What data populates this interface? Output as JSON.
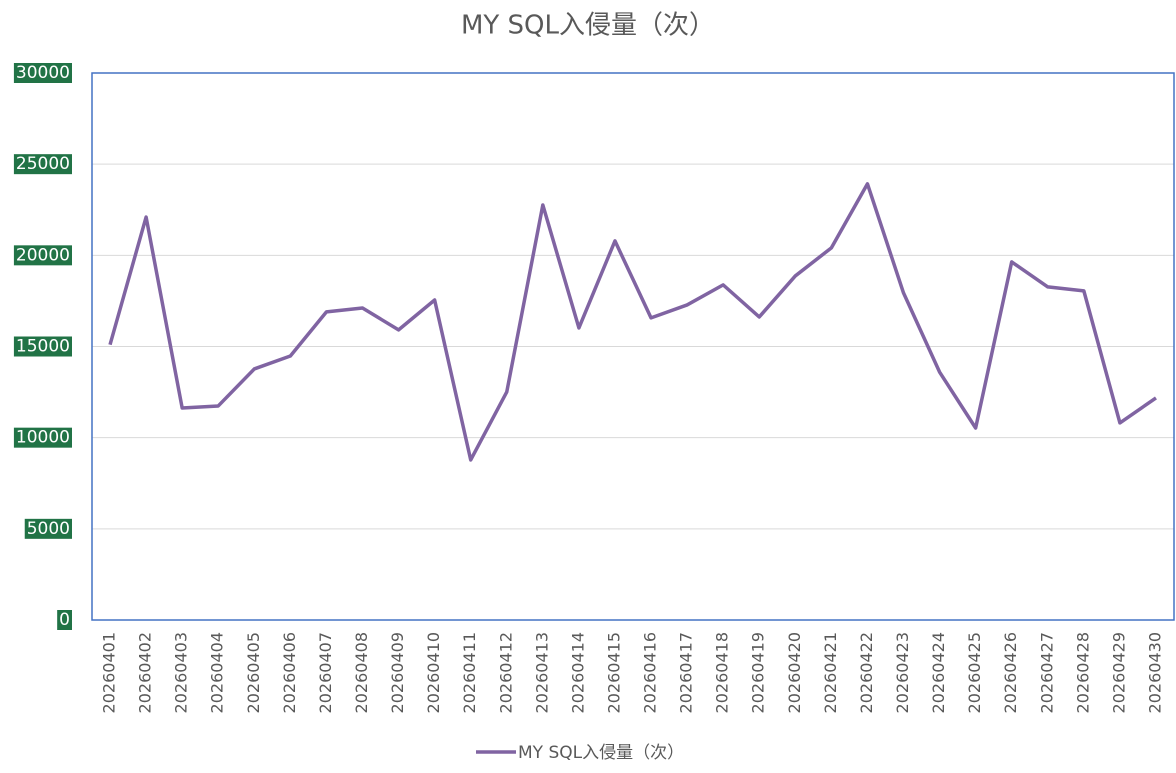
{
  "chart_data": {
    "type": "line",
    "title": "MY SQL入侵量（次）",
    "categories": [
      "20260401",
      "20260402",
      "20260403",
      "20260404",
      "20260405",
      "20260406",
      "20260407",
      "20260408",
      "20260409",
      "20260410",
      "20260411",
      "20260412",
      "20260413",
      "20260414",
      "20260415",
      "20260416",
      "20260417",
      "20260418",
      "20260419",
      "20260420",
      "20260421",
      "20260422",
      "20260423",
      "20260424",
      "20260425",
      "20260426",
      "20260427",
      "20260428",
      "20260429",
      "20260430"
    ],
    "series": [
      {
        "name": "MY SQL入侵量（次）",
        "color": "#8064a2",
        "values": [
          15100,
          22100,
          11630,
          11740,
          13770,
          14480,
          16900,
          17110,
          15910,
          17550,
          8780,
          12510,
          22760,
          16020,
          20790,
          16570,
          17280,
          18380,
          16620,
          18870,
          20410,
          23920,
          17940,
          13600,
          10530,
          19640,
          18270,
          18050,
          10810,
          12180
        ]
      }
    ],
    "ylim": [
      0,
      30000
    ],
    "yticks": [
      0,
      5000,
      10000,
      15000,
      20000,
      25000,
      30000
    ],
    "grid": true,
    "legend": "bottom"
  }
}
